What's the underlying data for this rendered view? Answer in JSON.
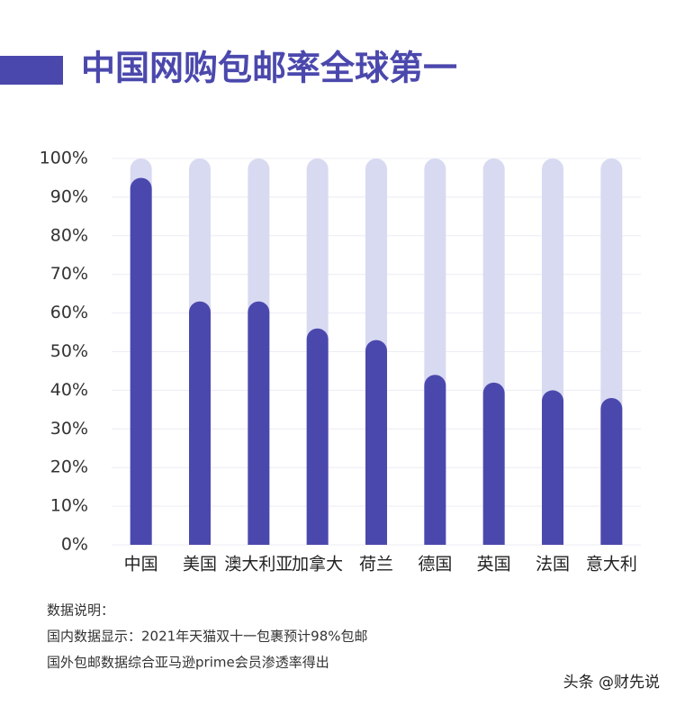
{
  "chart_data": {
    "type": "bar",
    "title": "中国网购包邮率全球第一",
    "categories": [
      "中国",
      "美国",
      "澳大利亚",
      "加拿大",
      "荷兰",
      "德国",
      "英国",
      "法国",
      "意大利"
    ],
    "values": [
      95,
      63,
      63,
      56,
      53,
      44,
      42,
      40,
      38
    ],
    "color": "#4b48ad",
    "track_color": "#d8daf2",
    "ylim": [
      0,
      100
    ],
    "yticks": [
      {
        "value": 0,
        "label": "0%"
      },
      {
        "value": 10,
        "label": "10%"
      },
      {
        "value": 20,
        "label": "20%"
      },
      {
        "value": 30,
        "label": "30%"
      },
      {
        "value": 40,
        "label": "40%"
      },
      {
        "value": 50,
        "label": "50%"
      },
      {
        "value": 60,
        "label": "60%"
      },
      {
        "value": 70,
        "label": "70%"
      },
      {
        "value": 80,
        "label": "80%"
      },
      {
        "value": 90,
        "label": "90%"
      },
      {
        "value": 100,
        "label": "100%"
      }
    ],
    "grid": true,
    "notes": [
      "数据说明：",
      "国内数据显示：2021年天猫双十一包裹预计98%包邮",
      "国外包邮数据综合亚马逊prime会员渗透率得出"
    ]
  },
  "watermark": "头条 @财先说"
}
